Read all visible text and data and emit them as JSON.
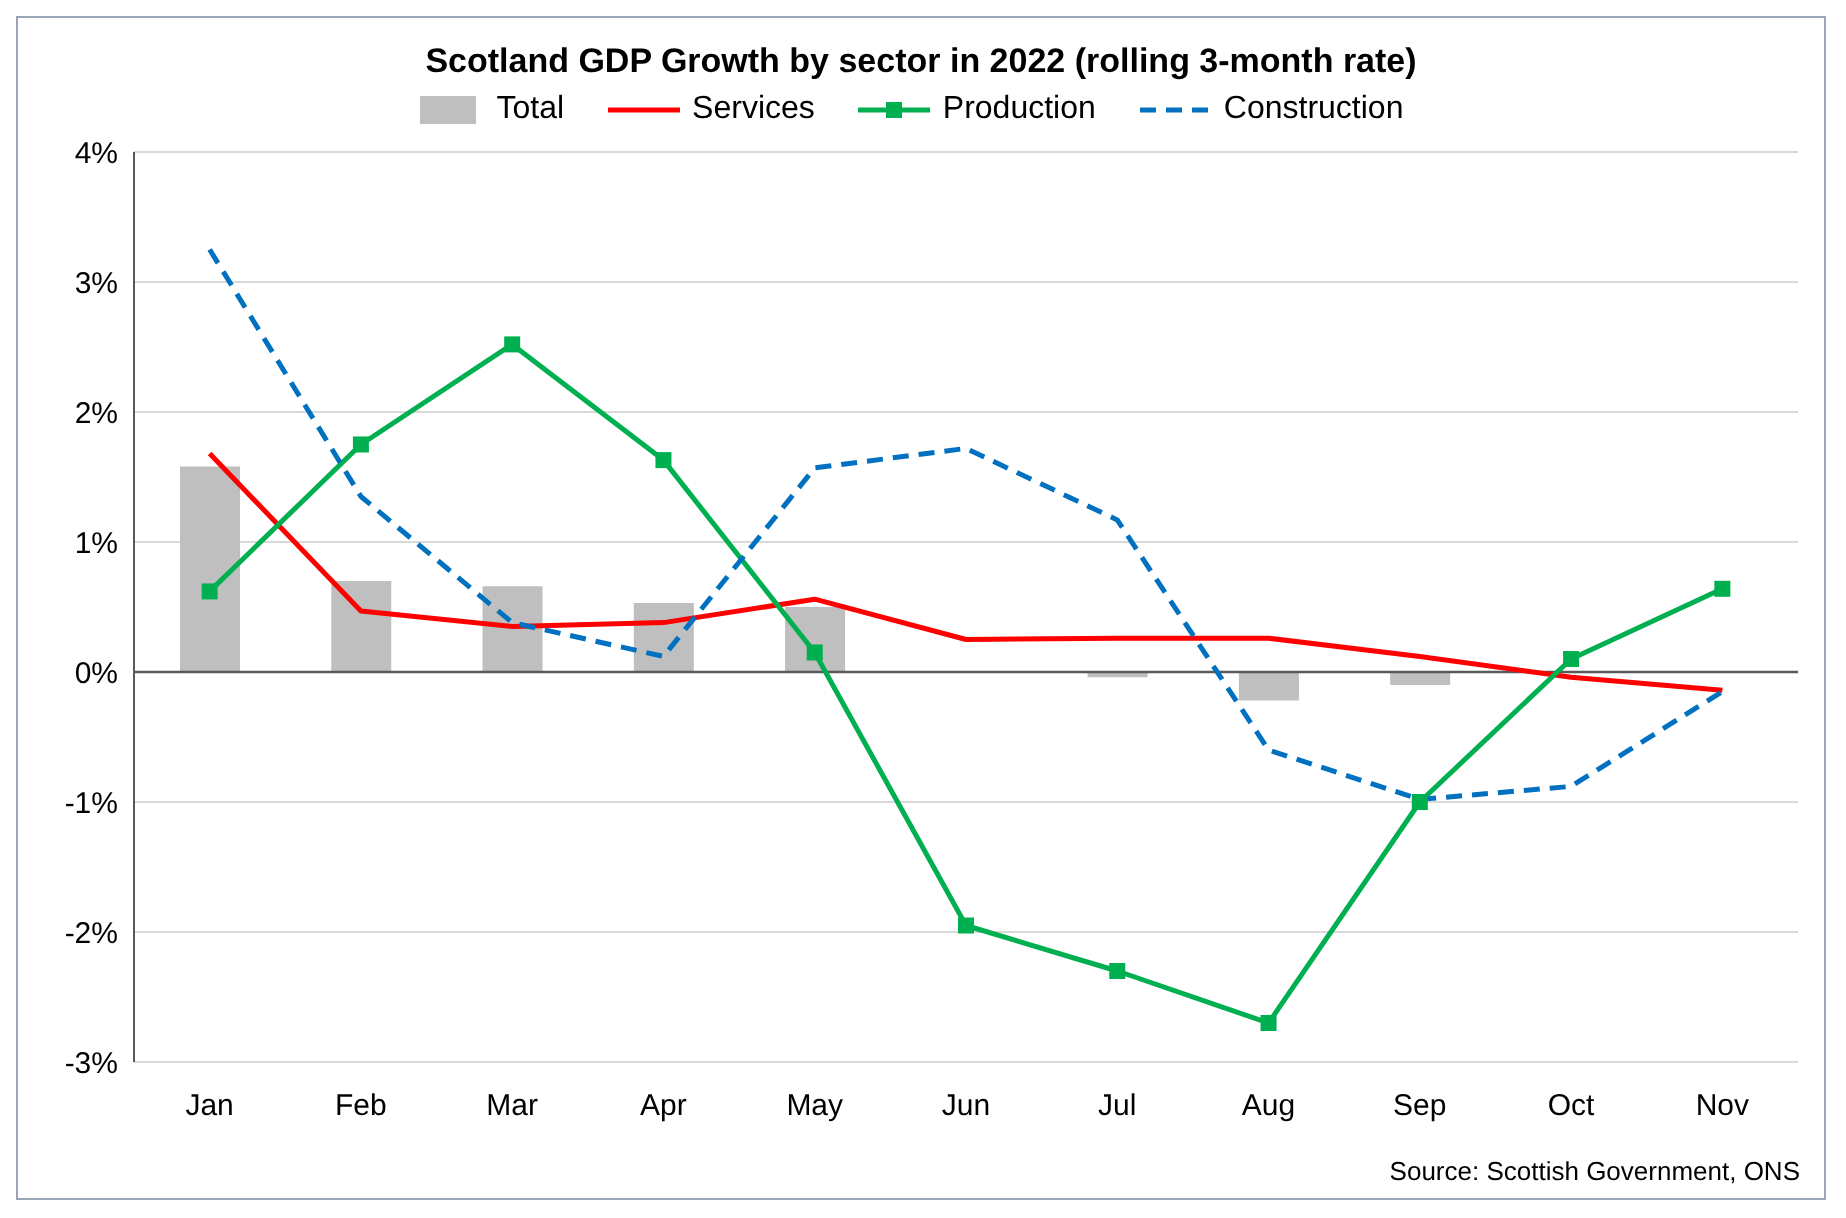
{
  "chart_data": {
    "type": "line",
    "title": "Scotland GDP Growth by sector in 2022 (rolling 3-month rate)",
    "categories": [
      "Jan",
      "Feb",
      "Mar",
      "Apr",
      "May",
      "Jun",
      "Jul",
      "Aug",
      "Sep",
      "Oct",
      "Nov"
    ],
    "series": [
      {
        "name": "Total",
        "type": "bar",
        "color": "#bfbfbf",
        "values": [
          1.58,
          0.7,
          0.66,
          0.53,
          0.5,
          0,
          -0.04,
          -0.22,
          -0.1,
          null,
          null
        ]
      },
      {
        "name": "Services",
        "color": "#ff0000",
        "marker": "none",
        "line_style": "solid",
        "values": [
          1.68,
          0.47,
          0.35,
          0.38,
          0.56,
          0.25,
          0.26,
          0.26,
          0.12,
          -0.04,
          -0.14
        ]
      },
      {
        "name": "Production",
        "color": "#00b050",
        "marker": "square",
        "line_style": "solid",
        "values": [
          0.62,
          1.75,
          2.52,
          1.63,
          0.15,
          -1.95,
          -2.3,
          -2.7,
          -1.0,
          0.1,
          0.64
        ]
      },
      {
        "name": "Construction",
        "color": "#0070c0",
        "marker": "none",
        "line_style": "dashed",
        "values": [
          3.25,
          1.35,
          0.38,
          0.12,
          1.57,
          1.72,
          1.17,
          -0.6,
          -0.98,
          -0.88,
          -0.15
        ]
      }
    ],
    "ylim": [
      -3,
      4
    ],
    "yticks": [
      {
        "value": -3,
        "label": "-3%"
      },
      {
        "value": -2,
        "label": "-2%"
      },
      {
        "value": -1,
        "label": "-1%"
      },
      {
        "value": 0,
        "label": "0%"
      },
      {
        "value": 1,
        "label": "1%"
      },
      {
        "value": 2,
        "label": "2%"
      },
      {
        "value": 3,
        "label": "3%"
      },
      {
        "value": 4,
        "label": "4%"
      }
    ],
    "grid": "y",
    "legend": "top",
    "annotations": [
      "Source: Scottish Government, ONS"
    ]
  }
}
